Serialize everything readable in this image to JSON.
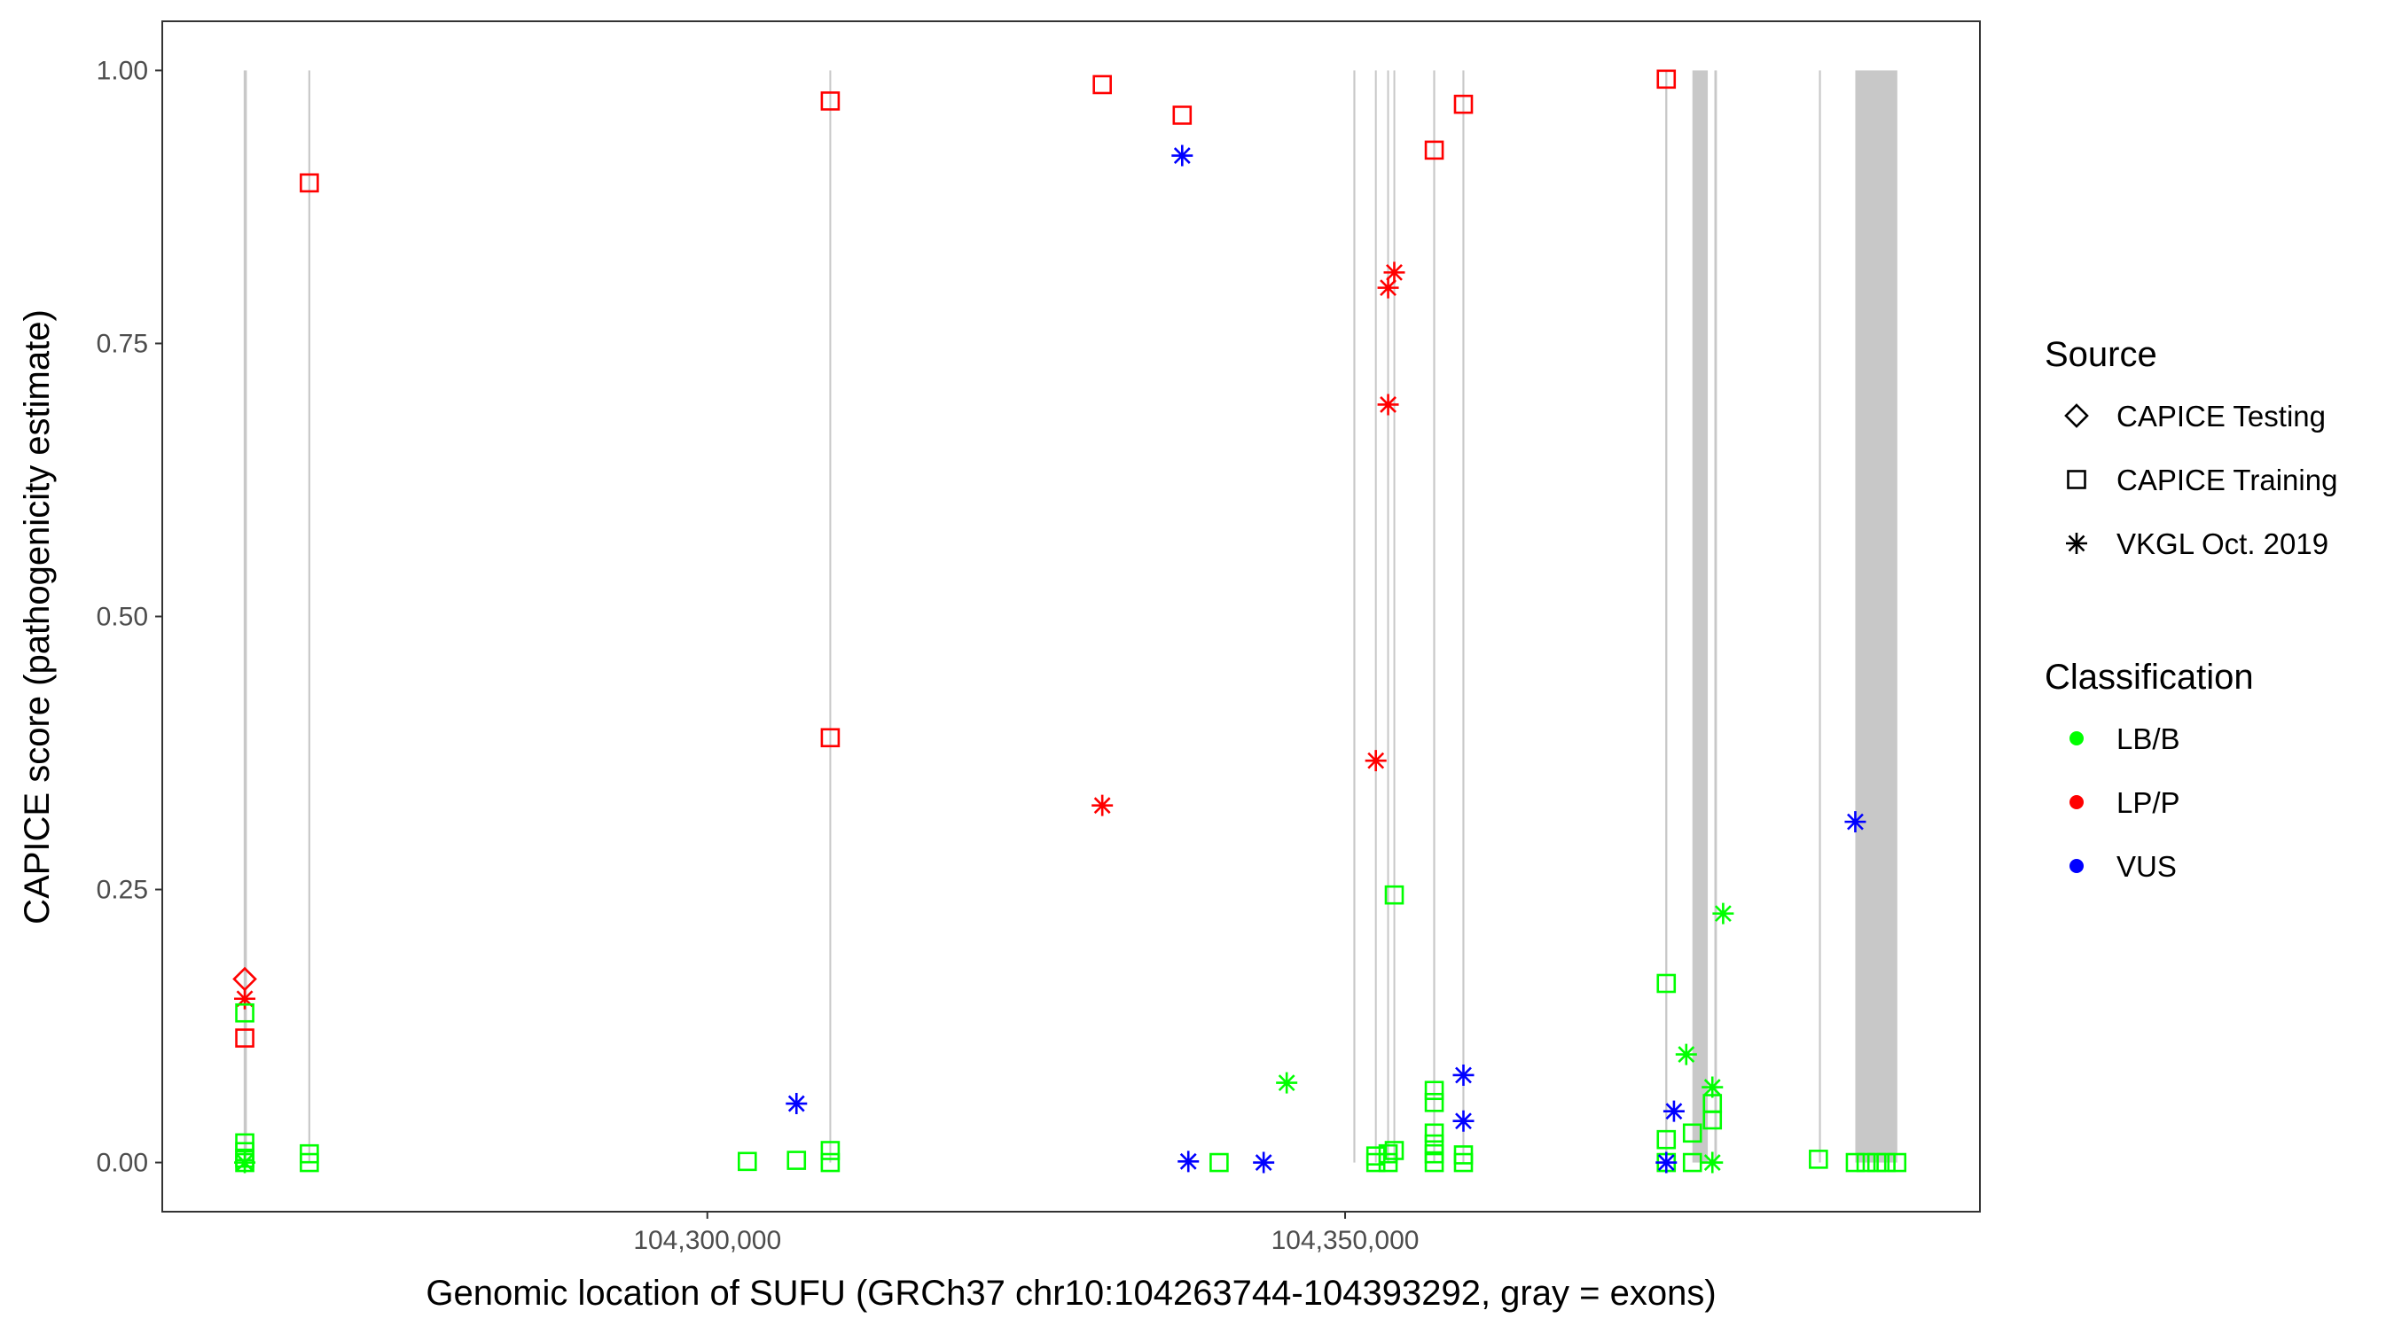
{
  "chart_data": {
    "type": "scatter",
    "xlabel": "Genomic location of SUFU (GRCh37 chr10:104263744-104393292, gray = exons)",
    "ylabel": "CAPICE score (pathogenicity estimate)",
    "xlim": [
      104257267,
      104399769
    ],
    "ylim": [
      -0.045,
      1.045
    ],
    "x_ticks": [
      104300000,
      104350000
    ],
    "x_tick_labels": [
      "104,300,000",
      "104,350,000"
    ],
    "y_ticks": [
      0,
      0.25,
      0.5,
      0.75,
      1.0
    ],
    "y_tick_labels": [
      "0.00",
      "0.25",
      "0.50",
      "0.75",
      "1.00"
    ],
    "grid": false,
    "legend_position": "right",
    "legend": {
      "source_title": "Source",
      "sources": [
        "CAPICE Testing",
        "CAPICE Training",
        "VKGL Oct. 2019"
      ],
      "source_shapes": [
        "diamond",
        "square",
        "asterisk"
      ],
      "class_title": "Classification",
      "classes": [
        "LB/B",
        "LP/P",
        "VUS"
      ],
      "class_colors": [
        "#00ff00",
        "#ff0000",
        "#0000ff"
      ]
    },
    "exon_color": "#c8c8c8",
    "exons": [
      [
        104263650,
        104263900
      ],
      [
        104268720,
        104268870
      ],
      [
        104309570,
        104309710
      ],
      [
        104350650,
        104350800
      ],
      [
        104352340,
        104352480
      ],
      [
        104353300,
        104353440
      ],
      [
        104353790,
        104353920
      ],
      [
        104356910,
        104357060
      ],
      [
        104359200,
        104359350
      ],
      [
        104375100,
        104375260
      ],
      [
        104377228,
        104378433
      ],
      [
        104378950,
        104379150
      ],
      [
        104387150,
        104387300
      ],
      [
        104389999,
        104393292
      ]
    ],
    "points_format": [
      "position",
      "score",
      "source_index",
      "class_index"
    ],
    "points": [
      [
        104263735,
        0.168,
        0,
        1
      ],
      [
        104263735,
        0.15,
        2,
        1
      ],
      [
        104263735,
        0.114,
        1,
        1
      ],
      [
        104263735,
        0.137,
        1,
        0
      ],
      [
        104263735,
        0.018,
        1,
        0
      ],
      [
        104263735,
        0.01,
        1,
        0
      ],
      [
        104263735,
        0.004,
        1,
        0
      ],
      [
        104263735,
        0.0,
        1,
        0
      ],
      [
        104263735,
        0.0,
        2,
        0
      ],
      [
        104268796,
        0.897,
        1,
        1
      ],
      [
        104268796,
        0.008,
        1,
        0
      ],
      [
        104268796,
        0.0,
        1,
        0
      ],
      [
        104303132,
        0.001,
        1,
        0
      ],
      [
        104306988,
        0.054,
        2,
        2
      ],
      [
        104306988,
        0.002,
        1,
        0
      ],
      [
        104309638,
        0.972,
        1,
        1
      ],
      [
        104309638,
        0.389,
        1,
        1
      ],
      [
        104309638,
        0.011,
        1,
        0
      ],
      [
        104309638,
        0.0,
        1,
        0
      ],
      [
        104330963,
        0.987,
        1,
        1
      ],
      [
        104330963,
        0.327,
        2,
        1
      ],
      [
        104337228,
        0.959,
        1,
        1
      ],
      [
        104337228,
        0.922,
        2,
        2
      ],
      [
        104337710,
        0.001,
        2,
        2
      ],
      [
        104340120,
        0.0,
        1,
        0
      ],
      [
        104343614,
        0.0,
        2,
        2
      ],
      [
        104345421,
        0.073,
        2,
        0
      ],
      [
        104352410,
        0.368,
        2,
        1
      ],
      [
        104352410,
        0.006,
        1,
        0
      ],
      [
        104352410,
        0.0,
        1,
        0
      ],
      [
        104353373,
        0.801,
        2,
        1
      ],
      [
        104353373,
        0.694,
        2,
        1
      ],
      [
        104353373,
        0.008,
        1,
        0
      ],
      [
        104353373,
        0.0,
        1,
        0
      ],
      [
        104353855,
        0.815,
        2,
        1
      ],
      [
        104353855,
        0.245,
        1,
        0
      ],
      [
        104353855,
        0.011,
        1,
        0
      ],
      [
        104356988,
        0.927,
        1,
        1
      ],
      [
        104356988,
        0.066,
        1,
        0
      ],
      [
        104356988,
        0.055,
        1,
        0
      ],
      [
        104356988,
        0.027,
        1,
        0
      ],
      [
        104356988,
        0.017,
        1,
        0
      ],
      [
        104356988,
        0.008,
        1,
        0
      ],
      [
        104356988,
        0.0,
        1,
        0
      ],
      [
        104359277,
        0.969,
        1,
        1
      ],
      [
        104359277,
        0.08,
        2,
        2
      ],
      [
        104359277,
        0.038,
        2,
        2
      ],
      [
        104359277,
        0.007,
        1,
        0
      ],
      [
        104359277,
        0.0,
        1,
        0
      ],
      [
        104375180,
        0.992,
        1,
        1
      ],
      [
        104375180,
        0.164,
        1,
        0
      ],
      [
        104375180,
        0.021,
        1,
        0
      ],
      [
        104375180,
        0.0,
        1,
        0
      ],
      [
        104375180,
        0.0,
        2,
        2
      ],
      [
        104375782,
        0.047,
        2,
        2
      ],
      [
        104376746,
        0.099,
        2,
        0
      ],
      [
        104377228,
        0.027,
        1,
        0
      ],
      [
        104377228,
        0.0,
        1,
        0
      ],
      [
        104378794,
        0.069,
        2,
        0
      ],
      [
        104378794,
        0.054,
        1,
        0
      ],
      [
        104378794,
        0.039,
        1,
        0
      ],
      [
        104378794,
        0.0,
        2,
        0
      ],
      [
        104379637,
        0.228,
        2,
        0
      ],
      [
        104387107,
        0.003,
        1,
        0
      ],
      [
        104389999,
        0.312,
        2,
        2
      ],
      [
        104389999,
        0.0,
        1,
        0
      ],
      [
        104390842,
        0.0,
        1,
        0
      ],
      [
        104391685,
        0.0,
        1,
        0
      ],
      [
        104392408,
        0.0,
        1,
        0
      ],
      [
        104393252,
        0.0,
        1,
        0
      ]
    ]
  }
}
